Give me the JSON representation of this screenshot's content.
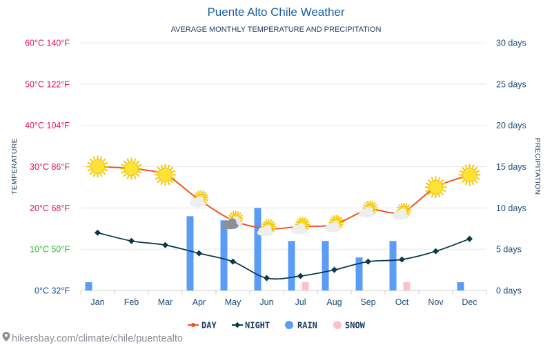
{
  "source": "hikersbay.com/climate/chile/puentealto",
  "chart_data": {
    "type": "line",
    "title": "Puente Alto Chile Weather",
    "subtitle": "AVERAGE MONTHLY TEMPERATURE AND PRECIPITATION",
    "ylabel_left": "TEMPERATURE",
    "ylabel_right": "PRECIPITATION",
    "categories": [
      "Jan",
      "Feb",
      "Mar",
      "Apr",
      "May",
      "Jun",
      "Jul",
      "Aug",
      "Sep",
      "Oct",
      "Nov",
      "Dec"
    ],
    "temp_ylim": [
      0,
      60
    ],
    "precip_ylim": [
      0,
      30
    ],
    "temp_ticks": [
      {
        "value": 60,
        "label": "60°C 140°F",
        "color": "#e0145a"
      },
      {
        "value": 50,
        "label": "50°C 122°F",
        "color": "#e0145a"
      },
      {
        "value": 40,
        "label": "40°C 104°F",
        "color": "#e0145a"
      },
      {
        "value": 30,
        "label": "30°C 86°F",
        "color": "#e0145a"
      },
      {
        "value": 20,
        "label": "20°C 68°F",
        "color": "#e0145a"
      },
      {
        "value": 10,
        "label": "10°C 50°F",
        "color": "#2eb82e"
      },
      {
        "value": 0,
        "label": "0°C 32°F",
        "color": "#1b4a9e"
      }
    ],
    "precip_ticks": [
      {
        "value": 30,
        "label": "30 days"
      },
      {
        "value": 25,
        "label": "25 days"
      },
      {
        "value": 20,
        "label": "20 days"
      },
      {
        "value": 15,
        "label": "15 days"
      },
      {
        "value": 10,
        "label": "10 days"
      },
      {
        "value": 5,
        "label": "5 days"
      },
      {
        "value": 0,
        "label": "0 days"
      }
    ],
    "series": [
      {
        "name": "DAY",
        "kind": "line",
        "color": "#f4511e",
        "values": [
          30,
          29.5,
          28,
          22,
          17,
          15,
          15.5,
          16,
          19.5,
          19,
          25,
          28
        ]
      },
      {
        "name": "NIGHT",
        "kind": "line",
        "color": "#0d3a4a",
        "values": [
          14,
          12,
          11,
          9,
          7,
          3,
          3.5,
          5,
          7,
          7.5,
          9.5,
          12.5
        ]
      },
      {
        "name": "RAIN",
        "kind": "bar",
        "color": "#5b9cf6",
        "values": [
          1,
          0,
          0,
          9,
          8.5,
          10,
          6,
          6,
          4,
          6,
          0,
          1
        ]
      },
      {
        "name": "SNOW",
        "kind": "bar",
        "color": "#ffc0cb",
        "values": [
          0,
          0,
          0,
          0,
          0,
          0,
          1,
          0,
          0,
          1,
          0,
          0
        ]
      }
    ],
    "weather_icons": [
      "sun-icon",
      "sun-icon",
      "sun-icon",
      "partly-cloudy-icon",
      "cloudy-icon",
      "partly-cloudy-icon",
      "partly-cloudy-icon",
      "partly-cloudy-icon",
      "partly-cloudy-icon",
      "partly-cloudy-icon",
      "sun-icon",
      "sun-icon"
    ],
    "grid": true,
    "legend_position": "bottom-center"
  }
}
